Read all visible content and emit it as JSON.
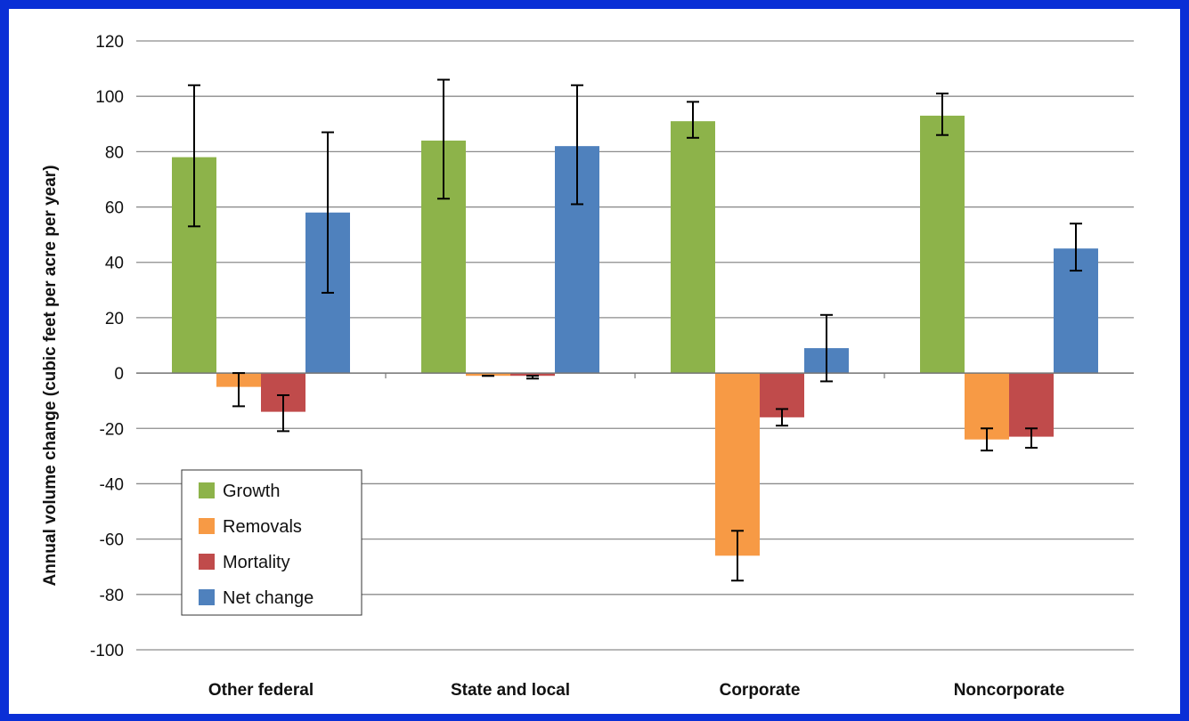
{
  "chart_data": {
    "type": "bar",
    "title": "",
    "xlabel": "",
    "ylabel": "Annual volume change (cubic feet per acre per year)",
    "ylim": [
      -100,
      120
    ],
    "yticks": [
      120,
      100,
      80,
      60,
      40,
      20,
      0,
      -20,
      -40,
      -60,
      -80,
      -100
    ],
    "ytick_labels": [
      "120",
      "100",
      "80",
      "60",
      "40",
      "20",
      "0",
      "-20",
      "-40",
      "-60",
      "-80",
      "-100"
    ],
    "grid": true,
    "legend_position": "bottom-left",
    "categories": [
      "Other federal",
      "State and local",
      "Corporate",
      "Noncorporate"
    ],
    "series": [
      {
        "name": "Growth",
        "color": "#8db34a",
        "values": [
          78,
          84,
          91,
          93
        ],
        "err_low": [
          53,
          63,
          85,
          86
        ],
        "err_high": [
          104,
          106,
          98,
          101
        ]
      },
      {
        "name": "Removals",
        "color": "#f79a45",
        "values": [
          -5,
          -1,
          -66,
          -24
        ],
        "err_low": [
          -12,
          -1,
          -75,
          -28
        ],
        "err_high": [
          0,
          -1,
          -57,
          -20
        ]
      },
      {
        "name": "Mortality",
        "color": "#c04b4b",
        "values": [
          -14,
          -1,
          -16,
          -23
        ],
        "err_low": [
          -21,
          -2,
          -19,
          -27
        ],
        "err_high": [
          -8,
          -1,
          -13,
          -20
        ]
      },
      {
        "name": "Net change",
        "color": "#4f81bd",
        "values": [
          58,
          82,
          9,
          45
        ],
        "err_low": [
          29,
          61,
          -3,
          37
        ],
        "err_high": [
          87,
          104,
          21,
          54
        ]
      }
    ]
  }
}
